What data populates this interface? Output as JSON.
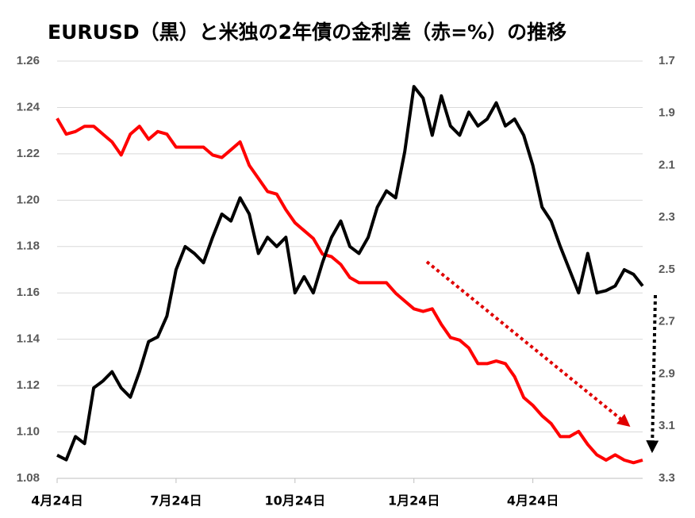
{
  "chart_data": {
    "type": "line",
    "title": "EURUSD（黒）と米独の2年債の金利差（赤=%）の推移",
    "xlim": [
      0,
      64
    ],
    "xticks": [
      {
        "value": 0,
        "label": "4月24日"
      },
      {
        "value": 13,
        "label": "7月24日"
      },
      {
        "value": 26,
        "label": "10月24日"
      },
      {
        "value": 39,
        "label": "1月24日"
      },
      {
        "value": 52,
        "label": "4月24日"
      }
    ],
    "ylim": [
      1.08,
      1.26
    ],
    "yticks": [
      {
        "value": 1.08,
        "label": "1.08"
      },
      {
        "value": 1.1,
        "label": "1.10"
      },
      1.12,
      1.14,
      1.16,
      1.18,
      {
        "value": 1.2,
        "label": "1.20"
      },
      1.22,
      1.24,
      1.26
    ],
    "y2lim": [
      3.3,
      1.7
    ],
    "y2ticks": [
      1.7,
      1.9,
      2.1,
      2.3,
      2.5,
      2.7,
      2.9,
      3.1,
      3.3
    ],
    "grid": true,
    "series": [
      {
        "color": "#000000",
        "values": [
          1.09,
          1.088,
          1.098,
          1.095,
          1.119,
          1.122,
          1.126,
          1.119,
          1.115,
          1.126,
          1.139,
          1.141,
          1.15,
          1.17,
          1.18,
          1.177,
          1.173,
          1.184,
          1.194,
          1.191,
          1.201,
          1.194,
          1.177,
          1.184,
          1.18,
          1.184,
          1.16,
          1.167,
          1.16,
          1.173,
          1.184,
          1.191,
          1.18,
          1.177,
          1.184,
          1.197,
          1.204,
          1.201,
          1.221,
          1.249,
          1.244,
          1.228,
          1.245,
          1.232,
          1.228,
          1.238,
          1.232,
          1.235,
          1.242,
          1.232,
          1.235,
          1.228,
          1.215,
          1.197,
          1.191,
          1.18,
          1.17,
          1.16,
          1.177,
          1.16,
          1.161,
          1.163,
          1.17,
          1.168,
          1.163
        ]
      },
      {
        "color": "#ff0000",
        "axis": "y2",
        "values": [
          1.92,
          1.98,
          1.97,
          1.95,
          1.95,
          1.98,
          2.01,
          2.06,
          1.98,
          1.95,
          2.0,
          1.97,
          1.98,
          2.03,
          2.03,
          2.03,
          2.03,
          2.06,
          2.07,
          2.04,
          2.01,
          2.1,
          2.15,
          2.2,
          2.21,
          2.27,
          2.32,
          2.35,
          2.38,
          2.44,
          2.45,
          2.48,
          2.53,
          2.55,
          2.55,
          2.55,
          2.55,
          2.59,
          2.62,
          2.65,
          2.66,
          2.65,
          2.71,
          2.76,
          2.77,
          2.8,
          2.86,
          2.86,
          2.85,
          2.86,
          2.91,
          2.99,
          3.02,
          3.06,
          3.09,
          3.14,
          3.14,
          3.12,
          3.17,
          3.21,
          3.23,
          3.21,
          3.23,
          3.24,
          3.23
        ]
      }
    ]
  }
}
